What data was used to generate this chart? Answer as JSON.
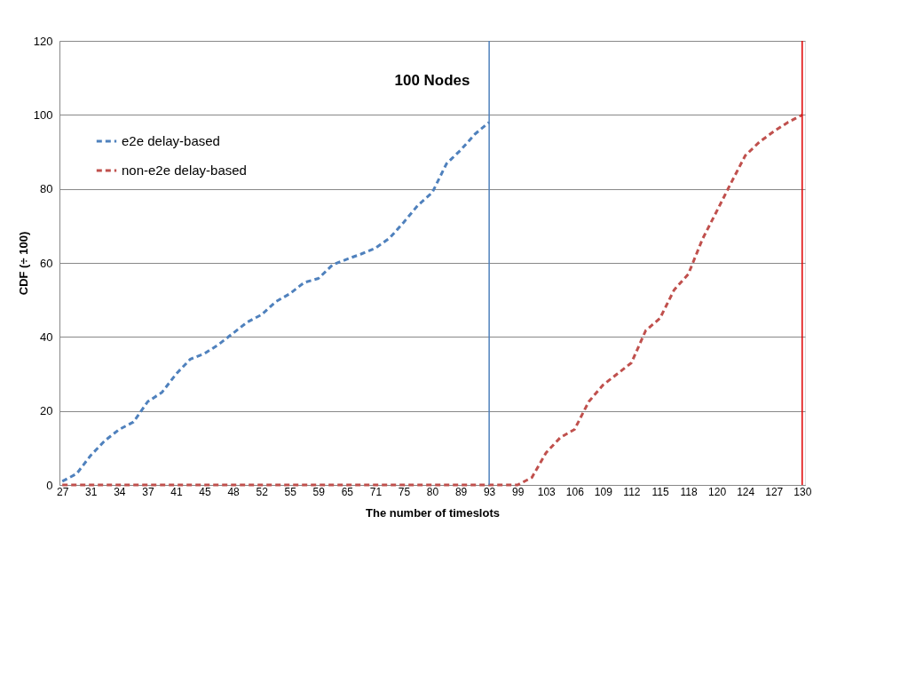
{
  "chart_data": {
    "type": "line",
    "title": "100 Nodes",
    "xlabel": "The number of timeslots",
    "ylabel": "CDF (÷ 100)",
    "categories": [
      "27",
      null,
      "31",
      null,
      "34",
      null,
      "37",
      null,
      "41",
      null,
      "45",
      null,
      "48",
      null,
      "52",
      null,
      "55",
      null,
      "59",
      null,
      "65",
      null,
      "71",
      null,
      "75",
      null,
      "80",
      null,
      "89",
      null,
      "93",
      null,
      "99",
      null,
      "103",
      null,
      "106",
      null,
      "109",
      null,
      "112",
      null,
      "115",
      null,
      "118",
      null,
      "120",
      null,
      "124",
      null,
      "127",
      null,
      "130"
    ],
    "series": [
      {
        "name": "e2e delay-based",
        "color": "#4f81bd",
        "values": [
          1,
          3,
          8,
          12,
          15,
          17,
          22.5,
          25,
          30,
          34,
          35.5,
          38,
          41,
          44,
          46,
          49.5,
          51.7,
          54.7,
          55.8,
          59.5,
          61,
          62.4,
          64,
          66.7,
          71,
          75.6,
          79,
          86.8,
          90.5,
          94.8,
          98,
          null,
          null,
          null,
          null,
          null,
          null,
          null,
          null,
          null,
          null,
          null,
          null,
          null,
          null,
          null,
          null,
          null,
          null,
          null,
          null,
          null,
          null
        ]
      },
      {
        "name": "non-e2e delay-based",
        "color": "#c0504d",
        "values": [
          0,
          0,
          0,
          0,
          0,
          0,
          0,
          0,
          0,
          0,
          0,
          0,
          0,
          0,
          0,
          0,
          0,
          0,
          0,
          0,
          0,
          0,
          0,
          0,
          0,
          0,
          0,
          0,
          0,
          0,
          0,
          0,
          0,
          2,
          8.7,
          12.8,
          15,
          22.5,
          27,
          30,
          33,
          41.7,
          45,
          52.7,
          57,
          66.5,
          74,
          81.6,
          89,
          92.7,
          95.5,
          98,
          100
        ]
      }
    ],
    "ref_lines": [
      {
        "axis": "x",
        "value": "93",
        "color": "#4f81bd",
        "line_style": "solid"
      },
      {
        "axis": "x",
        "value": "130",
        "color": "#e00000",
        "line_style": "solid"
      }
    ],
    "ylim": [
      0,
      120
    ],
    "yticks": [
      0,
      20,
      40,
      60,
      80,
      100,
      120
    ],
    "grid": "y",
    "legend": "top left",
    "line_style": "dashed",
    "marker": "none"
  }
}
